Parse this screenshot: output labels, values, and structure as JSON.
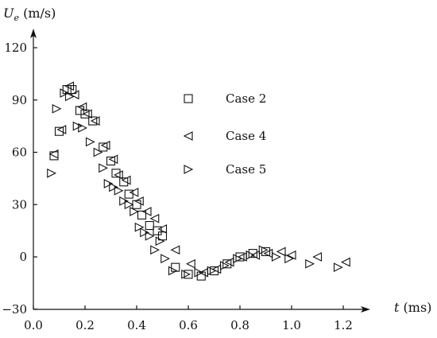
{
  "chart_data": {
    "type": "scatter",
    "title": "",
    "xlabel": {
      "symbol": "t",
      "unit": " (ms)"
    },
    "ylabel": {
      "symbol": "U",
      "subscript": "e",
      "unit": " (m/s)"
    },
    "xlim": [
      0,
      1.3
    ],
    "ylim": [
      -30,
      130
    ],
    "xticks": [
      0.0,
      0.2,
      0.4,
      0.6,
      0.8,
      1.0,
      1.2
    ],
    "xtick_labels": [
      "0.0",
      "0.2",
      "0.4",
      "0.6",
      "0.8",
      "1.0",
      "1.2"
    ],
    "yticks": [
      -30,
      0,
      30,
      60,
      90,
      120
    ],
    "ytick_labels": [
      "−30",
      "0",
      "30",
      "60",
      "90",
      "120"
    ],
    "grid": false,
    "legend_position": "upper-right",
    "series": [
      {
        "name": "Case 2",
        "marker": "square",
        "points": [
          [
            0.08,
            58
          ],
          [
            0.1,
            72
          ],
          [
            0.13,
            96
          ],
          [
            0.15,
            96
          ],
          [
            0.18,
            84
          ],
          [
            0.2,
            82
          ],
          [
            0.23,
            78
          ],
          [
            0.27,
            63
          ],
          [
            0.3,
            55
          ],
          [
            0.32,
            48
          ],
          [
            0.35,
            43
          ],
          [
            0.37,
            36
          ],
          [
            0.4,
            30
          ],
          [
            0.42,
            24
          ],
          [
            0.45,
            18
          ],
          [
            0.48,
            15
          ],
          [
            0.5,
            12
          ],
          [
            0.55,
            -6
          ],
          [
            0.6,
            -10
          ],
          [
            0.65,
            -11
          ],
          [
            0.7,
            -8
          ],
          [
            0.75,
            -4
          ],
          [
            0.8,
            0
          ],
          [
            0.85,
            2
          ],
          [
            0.9,
            3
          ]
        ]
      },
      {
        "name": "Case 4",
        "marker": "triangle-left",
        "points": [
          [
            0.08,
            59
          ],
          [
            0.11,
            73
          ],
          [
            0.14,
            98
          ],
          [
            0.16,
            93
          ],
          [
            0.19,
            86
          ],
          [
            0.21,
            82
          ],
          [
            0.24,
            78
          ],
          [
            0.28,
            64
          ],
          [
            0.31,
            56
          ],
          [
            0.33,
            47
          ],
          [
            0.36,
            44
          ],
          [
            0.39,
            37
          ],
          [
            0.41,
            32
          ],
          [
            0.44,
            26
          ],
          [
            0.47,
            22
          ],
          [
            0.5,
            16
          ],
          [
            0.55,
            4
          ],
          [
            0.61,
            -4
          ],
          [
            0.66,
            -9
          ],
          [
            0.71,
            -7
          ],
          [
            0.76,
            -3
          ],
          [
            0.81,
            0
          ],
          [
            0.86,
            1
          ],
          [
            0.91,
            2
          ],
          [
            0.96,
            3
          ],
          [
            1.0,
            1
          ],
          [
            1.1,
            0
          ],
          [
            1.21,
            -3
          ]
        ]
      },
      {
        "name": "Case 5",
        "marker": "triangle-right",
        "points": [
          [
            0.07,
            48
          ],
          [
            0.09,
            85
          ],
          [
            0.12,
            94
          ],
          [
            0.14,
            92
          ],
          [
            0.17,
            75
          ],
          [
            0.19,
            74
          ],
          [
            0.22,
            66
          ],
          [
            0.25,
            60
          ],
          [
            0.27,
            51
          ],
          [
            0.29,
            42
          ],
          [
            0.31,
            40
          ],
          [
            0.33,
            38
          ],
          [
            0.35,
            32
          ],
          [
            0.37,
            30
          ],
          [
            0.39,
            26
          ],
          [
            0.41,
            17
          ],
          [
            0.43,
            14
          ],
          [
            0.45,
            12
          ],
          [
            0.47,
            4
          ],
          [
            0.49,
            9
          ],
          [
            0.51,
            -1
          ],
          [
            0.54,
            -8
          ],
          [
            0.59,
            -10
          ],
          [
            0.64,
            -9
          ],
          [
            0.69,
            -8
          ],
          [
            0.74,
            -5
          ],
          [
            0.79,
            -1
          ],
          [
            0.84,
            1
          ],
          [
            0.89,
            4
          ],
          [
            0.94,
            0
          ],
          [
            0.99,
            -1
          ],
          [
            1.07,
            -4
          ],
          [
            1.18,
            -6
          ]
        ]
      }
    ]
  }
}
